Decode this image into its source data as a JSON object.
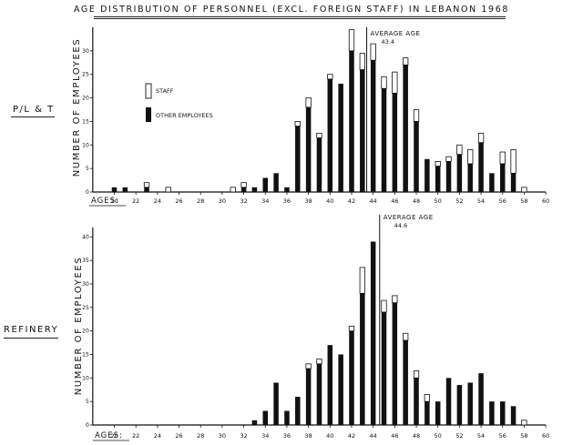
{
  "title": "AGE DISTRIBUTION OF PERSONNEL (EXCL. FOREIGN STAFF) IN LEBANON 1968",
  "chart_data": [
    {
      "type": "bar",
      "stacked": true,
      "row_label": "P/L & T",
      "ylabel": "NUMBER OF EMPLOYEES",
      "xlabel": "AGES:",
      "ylim": [
        0,
        35
      ],
      "xlim": [
        18,
        60
      ],
      "x_ticks": [
        20,
        22,
        24,
        26,
        28,
        30,
        32,
        34,
        36,
        38,
        40,
        42,
        44,
        46,
        48,
        50,
        52,
        54,
        56,
        58,
        60
      ],
      "y_ticks": [
        0,
        5,
        10,
        15,
        20,
        25,
        30
      ],
      "legend": [
        "STAFF",
        "OTHER EMPLOYEES"
      ],
      "legend_position": "upper-left",
      "annotation": {
        "text": "AVERAGE AGE",
        "value_text": "43.4",
        "x": 43.4
      },
      "x": [
        20,
        21,
        23,
        25,
        31,
        32,
        33,
        34,
        35,
        36,
        37,
        38,
        39,
        40,
        41,
        42,
        43,
        44,
        45,
        46,
        47,
        48,
        49,
        50,
        51,
        52,
        53,
        54,
        55,
        56,
        57,
        58
      ],
      "series": [
        {
          "name": "OTHER EMPLOYEES",
          "color": "#111111",
          "values": [
            1,
            1,
            1,
            0,
            0,
            1,
            1,
            3,
            4,
            1,
            14,
            18,
            11.5,
            24,
            23,
            30,
            26,
            28,
            22,
            21,
            27,
            15,
            7,
            5.5,
            6.5,
            8,
            6,
            10.5,
            4,
            6,
            4,
            0
          ]
        },
        {
          "name": "STAFF",
          "color": "#ffffff",
          "values": [
            0,
            0,
            1,
            1,
            1,
            1,
            0,
            0,
            0,
            0,
            1,
            2,
            1,
            1,
            0,
            4.5,
            3.5,
            3.5,
            2.5,
            4.5,
            1.5,
            2.5,
            0,
            1,
            1,
            2,
            3,
            2,
            0,
            2.5,
            5,
            1
          ]
        }
      ]
    },
    {
      "type": "bar",
      "stacked": true,
      "row_label": "REFINERY",
      "ylabel": "NUMBER OF EMPLOYEES",
      "xlabel": "AGES:",
      "ylim": [
        0,
        42
      ],
      "xlim": [
        18,
        60
      ],
      "x_ticks": [
        20,
        22,
        24,
        26,
        28,
        30,
        32,
        34,
        36,
        38,
        40,
        42,
        44,
        46,
        48,
        50,
        52,
        54,
        56,
        58,
        60
      ],
      "y_ticks": [
        0,
        5,
        10,
        15,
        20,
        25,
        30,
        35,
        40
      ],
      "annotation": {
        "text": "AVERAGE AGE",
        "value_text": "44.6",
        "x": 44.6
      },
      "x": [
        33,
        34,
        35,
        36,
        37,
        38,
        39,
        40,
        41,
        42,
        43,
        44,
        45,
        46,
        47,
        48,
        49,
        50,
        51,
        52,
        53,
        54,
        55,
        56,
        57,
        58
      ],
      "series": [
        {
          "name": "OTHER EMPLOYEES",
          "color": "#111111",
          "values": [
            1,
            3,
            9,
            3,
            6,
            12,
            13,
            17,
            15,
            20,
            28,
            39,
            24,
            26,
            18,
            10,
            5,
            5,
            10,
            8.5,
            9,
            11,
            5,
            5,
            4,
            0
          ]
        },
        {
          "name": "STAFF",
          "color": "#ffffff",
          "values": [
            0,
            0,
            0,
            0,
            0,
            1,
            1,
            0,
            0,
            1,
            5.5,
            0,
            2.5,
            1.5,
            1.5,
            1.5,
            1.5,
            0,
            0,
            0,
            0,
            0,
            0,
            0,
            0,
            1
          ]
        }
      ]
    }
  ]
}
